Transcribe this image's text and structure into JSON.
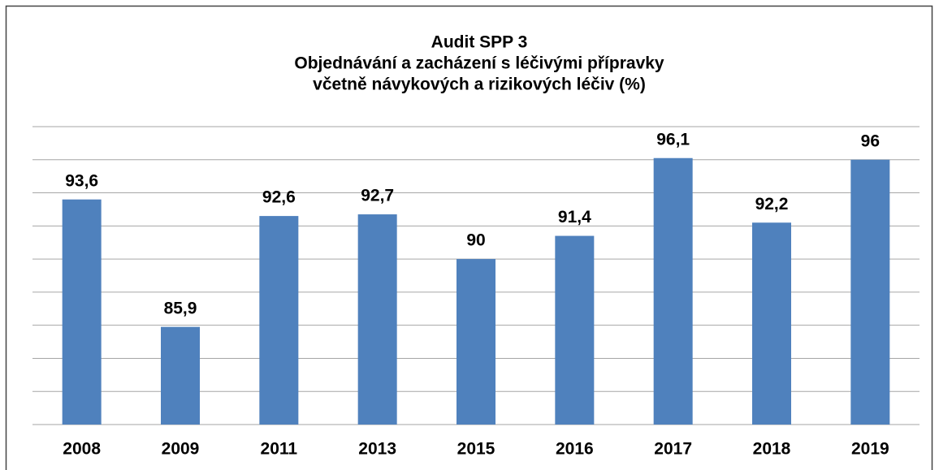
{
  "chart_data": {
    "type": "bar",
    "title": [
      "Audit SPP 3",
      "Objednávání a zacházení s léčivými přípravky",
      "včetně návykových a rizikových léčiv (%)"
    ],
    "categories": [
      "2008",
      "2009",
      "2011",
      "2013",
      "2015",
      "2016",
      "2017",
      "2018",
      "2019"
    ],
    "values": [
      93.6,
      85.9,
      92.6,
      92.7,
      90,
      91.4,
      96.1,
      92.2,
      96
    ],
    "value_labels": [
      "93,6",
      "85,9",
      "92,6",
      "92,7",
      "90",
      "91,4",
      "96,1",
      "92,2",
      "96"
    ],
    "color": "#4f81bd",
    "ylim": [
      80,
      98
    ],
    "yticks": [
      80,
      82,
      84,
      86,
      88,
      90,
      92,
      94,
      96,
      98
    ],
    "grid": true
  }
}
